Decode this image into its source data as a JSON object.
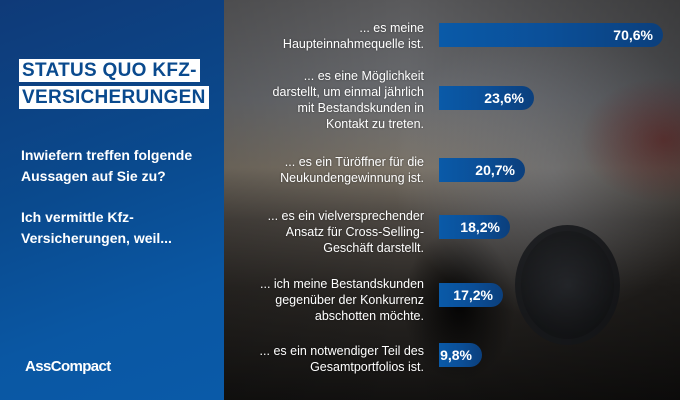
{
  "panel": {
    "title_lines": [
      "STATUS QUO KFZ-",
      "VERSICHERUNGEN"
    ],
    "question": "Inwiefern treffen folgende Aussagen auf Sie zu?",
    "intro": "Ich vermittle Kfz-Versicherungen, weil...",
    "logo": "AssCompact",
    "background_color": "#0a4a8e"
  },
  "bar_color": "#0a57a3",
  "items": [
    {
      "label_lines": [
        "... es meine",
        "Haupteinnahmequelle ist."
      ],
      "value": 70.6,
      "value_label": "70,6%"
    },
    {
      "label_lines": [
        "... es eine Möglichkeit",
        "darstellt, um einmal jährlich",
        "mit Bestandskunden in",
        "Kontakt zu treten."
      ],
      "value": 23.6,
      "value_label": "23,6%"
    },
    {
      "label_lines": [
        "... es ein Türöffner für die",
        "Neukundengewinnung ist."
      ],
      "value": 20.7,
      "value_label": "20,7%"
    },
    {
      "label_lines": [
        "... es ein vielversprechender",
        "Ansatz für Cross-Selling-",
        "Geschäft darstellt."
      ],
      "value": 18.2,
      "value_label": "18,2%"
    },
    {
      "label_lines": [
        "... ich meine Bestandskunden",
        "gegenüber der Konkurrenz",
        "abschotten möchte."
      ],
      "value": 17.2,
      "value_label": "17,2%"
    },
    {
      "label_lines": [
        "... es ein notwendiger Teil des",
        "Gesamtportfolios ist."
      ],
      "value": 9.8,
      "value_label": "9,8%"
    }
  ],
  "chart_data": {
    "type": "bar",
    "orientation": "horizontal",
    "title": "STATUS QUO KFZ-VERSICHERUNGEN",
    "subtitle": "Inwiefern treffen folgende Aussagen auf Sie zu? Ich vermittle Kfz-Versicherungen, weil...",
    "categories": [
      "... es meine Haupteinnahmequelle ist.",
      "... es eine Möglichkeit darstellt, um einmal jährlich mit Bestandskunden in Kontakt zu treten.",
      "... es ein Türöffner für die Neukundengewinnung ist.",
      "... es ein vielversprechender Ansatz für Cross-Selling-Geschäft darstellt.",
      "... ich meine Bestandskunden gegenüber der Konkurrenz abschotten möchte.",
      "... es ein notwendiger Teil des Gesamtportfolios ist."
    ],
    "values": [
      70.6,
      23.6,
      20.7,
      18.2,
      17.2,
      9.8
    ],
    "value_labels": [
      "70,6%",
      "23,6%",
      "20,7%",
      "18,2%",
      "17,2%",
      "9,8%"
    ],
    "xlabel": "",
    "ylabel": "",
    "unit": "%",
    "grid": false,
    "legend": null,
    "source": "AssCompact"
  }
}
